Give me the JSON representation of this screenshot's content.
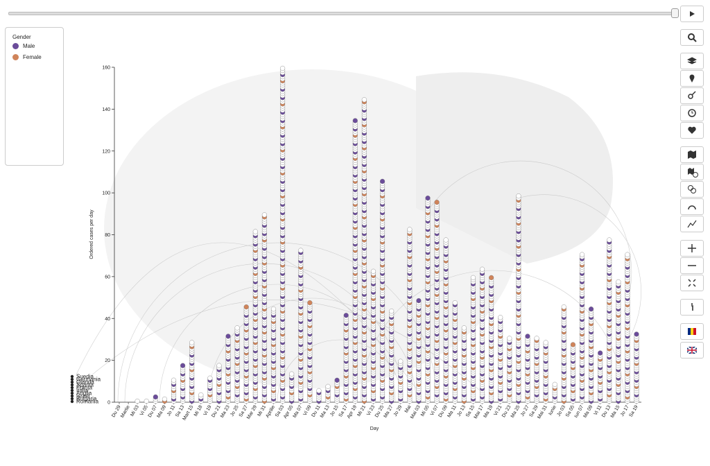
{
  "chart_data": {
    "type": "dotcolumn",
    "legend_title": "Gender",
    "series": [
      {
        "name": "Male",
        "color": "#6b4c9a"
      },
      {
        "name": "Female",
        "color": "#d0845a"
      }
    ],
    "x_label": "Day",
    "y_label": "Ordered cases per day",
    "countries": [
      "Suedia",
      "Germania",
      "Olanda",
      "Spania",
      "Franța",
      "Italia",
      "Anglia",
      "Israel",
      "Bulgaria",
      "Romania"
    ],
    "categories": [
      "Du 29",
      "Martie",
      "Mi 03",
      "Vi 05",
      "Du 07",
      "Ma 09",
      "Jo 11",
      "Sa 13",
      "Mart 15",
      "Mi 18",
      "Vi 19",
      "Du 21",
      "Ma 23",
      "Jo 25",
      "Sa 27",
      "Mar 29",
      "Mi 31",
      "Aprilie",
      "Sa 03",
      "Apr 05",
      "Ma 07",
      "Vi 09",
      "Du 11",
      "Ma 13",
      "Jo 15",
      "Sa 17",
      "Apr 19",
      "Mi 21",
      "Vi 23",
      "Du 25",
      "Ma 27",
      "Jo 29",
      "Mai",
      "Mai 03",
      "Mi 05",
      "Vi 07",
      "Du 09",
      "Ma 11",
      "Jo 13",
      "Sa 15",
      "Mai 17",
      "Ma 19",
      "Vi 21",
      "Du 23",
      "Ma 25",
      "Jo 27",
      "Sa 29",
      "Mai 31",
      "Iunie",
      "Jo 03",
      "Sa 05",
      "Iun 07",
      "Ma 09",
      "Vi 11",
      "Du 13",
      "Ma 15",
      "Jo 17",
      "Sa 19"
    ],
    "values": [
      0,
      0,
      1,
      1,
      3,
      2,
      11,
      18,
      29,
      4,
      12,
      18,
      32,
      36,
      46,
      82,
      90,
      45,
      160,
      14,
      73,
      48,
      6,
      8,
      11,
      42,
      135,
      145,
      63,
      106,
      44,
      20,
      83,
      49,
      98,
      96,
      78,
      48,
      36,
      60,
      64,
      60,
      41,
      31,
      99,
      32,
      31,
      29,
      9,
      46,
      28,
      71,
      45,
      24,
      78,
      58,
      71,
      33
    ],
    "ylim": [
      0,
      160
    ],
    "yticks": [
      0,
      20,
      40,
      60,
      80,
      100,
      120,
      140,
      160
    ]
  }
}
